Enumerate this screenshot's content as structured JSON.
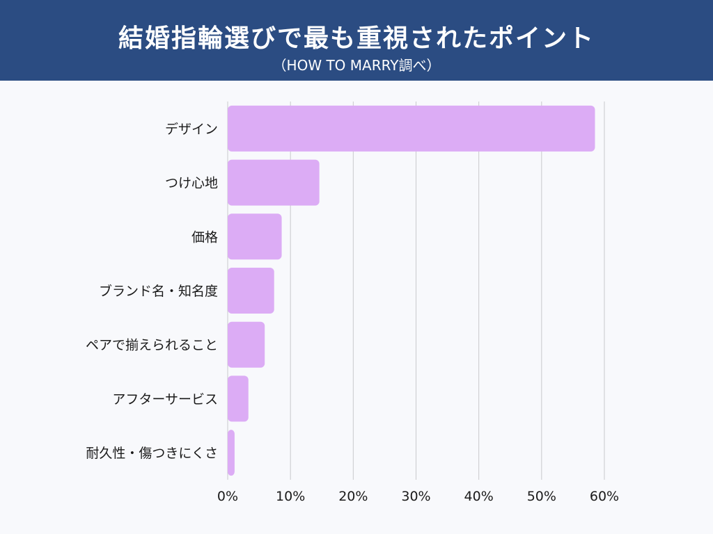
{
  "header": {
    "title": "結婚指輪選びで最も重視されたポイント",
    "subtitle": "（HOW TO MARRY調べ）"
  },
  "colors": {
    "header_bg": "#2b4c82",
    "bar": "#dcacf5",
    "grid": "#c9c9cc",
    "background": "#f8f9fc"
  },
  "chart_data": {
    "type": "bar",
    "orientation": "horizontal",
    "title": "結婚指輪選びで最も重視されたポイント",
    "subtitle": "（HOW TO MARRY調べ）",
    "categories": [
      "デザイン",
      "つけ心地",
      "価格",
      "ブランド名・知名度",
      "ペアで揃えられること",
      "アフターサービス",
      "耐久性・傷つきにくさ"
    ],
    "values": [
      58.5,
      14.6,
      8.6,
      7.4,
      5.9,
      3.3,
      1.1
    ],
    "unit": "%",
    "xlim": [
      0,
      60
    ],
    "xticks": [
      "0%",
      "10%",
      "20%",
      "30%",
      "40%",
      "50%",
      "60%"
    ],
    "xtick_values": [
      0,
      10,
      20,
      30,
      40,
      50,
      60
    ],
    "grid": "vertical",
    "legend": "none"
  }
}
